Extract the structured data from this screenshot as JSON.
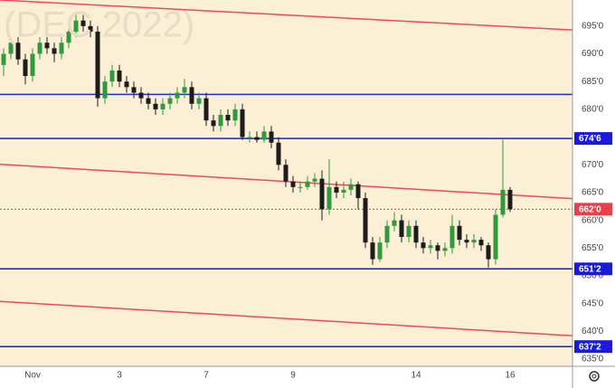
{
  "chart_data": {
    "type": "candlestick",
    "watermark": "(DEC 2022)",
    "categories": [
      null,
      null,
      null,
      null,
      "Nov",
      null,
      null,
      null,
      null,
      null,
      null,
      null,
      null,
      null,
      null,
      null,
      "3",
      null,
      null,
      null,
      null,
      null,
      null,
      null,
      null,
      null,
      null,
      null,
      "7",
      null,
      null,
      null,
      null,
      null,
      null,
      null,
      null,
      null,
      null,
      null,
      "9",
      null,
      null,
      null,
      null,
      null,
      null,
      null,
      null,
      null,
      null,
      null,
      null,
      null,
      null,
      null,
      null,
      "14",
      null,
      null,
      null,
      null,
      null,
      null,
      null,
      null,
      null,
      null,
      null,
      null,
      "16"
    ],
    "open": [
      688,
      690,
      692,
      689,
      686,
      690,
      692,
      691,
      690,
      692,
      694,
      696,
      695,
      694,
      682,
      685,
      687,
      685,
      684,
      683,
      682,
      681,
      680,
      681,
      682,
      683,
      684,
      681,
      682,
      678,
      677,
      679,
      678,
      680,
      675,
      675,
      674.5,
      676,
      674,
      670,
      667,
      666,
      666,
      667,
      667.5,
      662,
      666,
      665,
      665.5,
      666.5,
      664,
      656,
      653,
      656,
      659,
      660,
      657,
      659,
      656,
      655,
      655.5,
      654.5,
      655,
      659,
      656.5,
      656,
      656.5,
      655.5,
      653,
      661,
      665.5
    ],
    "high": [
      691,
      693,
      693,
      690,
      691,
      693,
      693,
      692,
      693,
      695,
      697.5,
      697,
      696,
      695,
      686,
      688,
      688,
      686,
      685,
      684,
      683,
      682,
      682,
      683,
      684,
      685.5,
      685,
      683,
      683,
      679,
      680,
      680,
      681,
      681,
      676,
      676,
      677,
      677,
      675,
      671,
      668,
      667,
      668,
      668.5,
      669,
      671,
      667,
      667,
      667.5,
      667,
      665,
      657,
      657,
      660,
      661.5,
      661,
      660,
      660,
      657,
      656.5,
      656,
      656,
      661,
      660,
      657.5,
      657.5,
      657,
      656,
      662,
      674.5,
      666
    ],
    "low": [
      686,
      689,
      688,
      684.5,
      685,
      689,
      690,
      688.5,
      689,
      691,
      693,
      694,
      693,
      680.5,
      681,
      684,
      684,
      683,
      682,
      681,
      680,
      679,
      679,
      680,
      681,
      682,
      680,
      680,
      677,
      676,
      676,
      677,
      677,
      674.5,
      674,
      674,
      674,
      673,
      669,
      666,
      665,
      665,
      665.5,
      666,
      660,
      661,
      664,
      664,
      664.5,
      662,
      655,
      652,
      652.5,
      655,
      658,
      656,
      656,
      655,
      654,
      654,
      653,
      653.5,
      654,
      655.5,
      655,
      655,
      654.5,
      651.5,
      652,
      660.5,
      661.5
    ],
    "close": [
      690,
      692,
      689,
      686,
      690,
      692,
      691,
      690,
      692,
      694,
      696,
      695,
      694,
      682,
      685,
      687,
      685,
      684,
      683,
      682,
      681,
      680,
      681,
      682,
      683,
      684,
      681,
      682,
      678,
      677,
      679,
      678,
      680,
      675,
      675,
      674.5,
      676,
      674,
      670,
      667,
      666,
      666,
      667,
      667.5,
      662,
      666,
      665,
      665.5,
      666.5,
      664,
      656,
      653,
      656,
      659,
      660,
      657,
      659,
      656,
      655,
      655.5,
      654.5,
      655,
      659,
      656.5,
      656,
      656.5,
      655.5,
      653,
      661,
      665.5,
      662
    ],
    "up_color": "#2f9a3c",
    "down_color": "#1c1c1c",
    "background": "#fbefd6",
    "ylim": [
      633.7,
      699.7
    ],
    "yticks": [
      {
        "value": 635,
        "label": "635'0"
      },
      {
        "value": 640,
        "label": "640'0"
      },
      {
        "value": 645,
        "label": "645'0"
      },
      {
        "value": 650,
        "label": "650'0"
      },
      {
        "value": 655,
        "label": "655'0"
      },
      {
        "value": 660,
        "label": "660'0"
      },
      {
        "value": 665,
        "label": "665'0"
      },
      {
        "value": 670,
        "label": "670'0"
      },
      {
        "value": 675,
        "label": "675'0"
      },
      {
        "value": 680,
        "label": "680'0"
      },
      {
        "value": 685,
        "label": "685'0"
      },
      {
        "value": 690,
        "label": "690'0"
      },
      {
        "value": 695,
        "label": "695'0"
      }
    ],
    "levels": [
      {
        "value": 682.7,
        "color": "#2030d0"
      },
      {
        "value": 674.75,
        "label": "674'6",
        "color": "#1a1adc"
      },
      {
        "value": 651.25,
        "label": "651'2",
        "color": "#1a1adc"
      },
      {
        "value": 637.25,
        "label": "637'2",
        "color": "#1a1adc"
      },
      {
        "value": 662,
        "label": "662'0",
        "color": "#e8404a",
        "dashed": true
      }
    ],
    "trend_lines": [
      {
        "values": [
          699.7,
          694.3
        ],
        "color": "#ee4a58"
      },
      {
        "values": [
          670.1,
          663.9
        ],
        "color": "#ee4a58"
      },
      {
        "values": [
          645.4,
          639.2
        ],
        "color": "#ee4a58"
      }
    ]
  }
}
